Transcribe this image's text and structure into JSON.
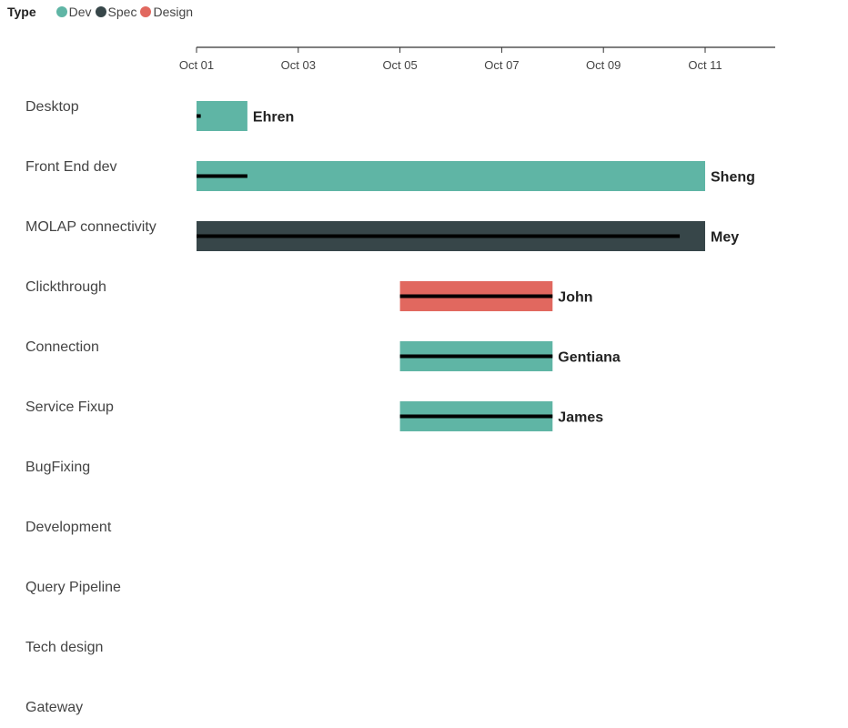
{
  "legend": {
    "title": "Type",
    "items": [
      {
        "label": "Dev",
        "color": "#5fb5a5"
      },
      {
        "label": "Spec",
        "color": "#374649"
      },
      {
        "label": "Design",
        "color": "#e1685f"
      }
    ]
  },
  "chart_data": {
    "type": "gantt",
    "title": "",
    "xlabel": "",
    "ylabel": "",
    "x_axis": {
      "type": "date",
      "position": "top",
      "range": [
        "2023-10-01",
        "2023-10-13"
      ],
      "ticks": [
        {
          "value": "2023-10-01",
          "label": "Oct 01"
        },
        {
          "value": "2023-10-03",
          "label": "Oct 03"
        },
        {
          "value": "2023-10-05",
          "label": "Oct 05"
        },
        {
          "value": "2023-10-07",
          "label": "Oct 07"
        },
        {
          "value": "2023-10-09",
          "label": "Oct 09"
        },
        {
          "value": "2023-10-11",
          "label": "Oct 11"
        }
      ]
    },
    "grid": false,
    "legend_position": "top-left",
    "categories": [
      "Desktop",
      "Front End dev",
      "MOLAP connectivity",
      "Clickthrough",
      "Connection",
      "Service Fixup",
      "BugFixing",
      "Development",
      "Query Pipeline",
      "Tech design",
      "Gateway"
    ],
    "tasks": [
      {
        "category": "Desktop",
        "resource": "Ehren",
        "type": "Dev",
        "start": "2023-10-01",
        "end": "2023-10-02",
        "progress_end": "2023-10-01T02:00"
      },
      {
        "category": "Front End dev",
        "resource": "Sheng",
        "type": "Dev",
        "start": "2023-10-01",
        "end": "2023-10-11",
        "progress_end": "2023-10-02"
      },
      {
        "category": "MOLAP connectivity",
        "resource": "Mey",
        "type": "Spec",
        "start": "2023-10-01",
        "end": "2023-10-11",
        "progress_end": "2023-10-10T12:00"
      },
      {
        "category": "Clickthrough",
        "resource": "John",
        "type": "Design",
        "start": "2023-10-05",
        "end": "2023-10-08",
        "progress_end": "2023-10-08"
      },
      {
        "category": "Connection",
        "resource": "Gentiana",
        "type": "Dev",
        "start": "2023-10-05",
        "end": "2023-10-08",
        "progress_end": "2023-10-08"
      },
      {
        "category": "Service Fixup",
        "resource": "James",
        "type": "Dev",
        "start": "2023-10-05",
        "end": "2023-10-08",
        "progress_end": "2023-10-08"
      }
    ],
    "progress_color": "#000000"
  }
}
